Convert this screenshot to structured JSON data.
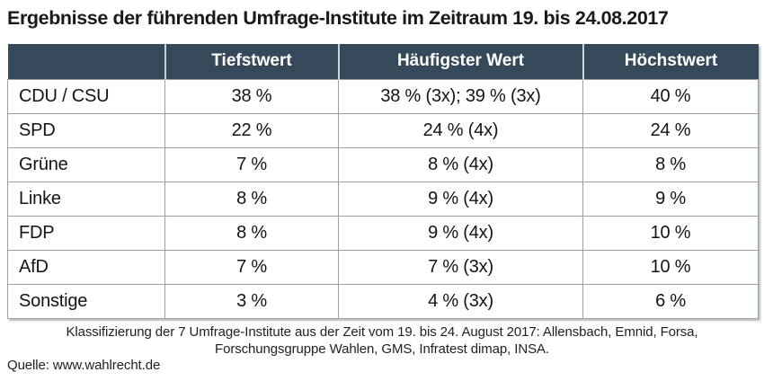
{
  "chart_data": {
    "type": "table",
    "title": "Ergebnisse der führenden Umfrage-Institute im Zeitraum 19. bis 24.08.2017",
    "columns": [
      "",
      "Tiefstwert",
      "Häufigster Wert",
      "Höchstwert"
    ],
    "rows": [
      [
        "CDU / CSU",
        "38 %",
        "38 % (3x); 39 % (3x)",
        "40 %"
      ],
      [
        "SPD",
        "22 %",
        "24 % (4x)",
        "24 %"
      ],
      [
        "Grüne",
        "7 %",
        "8 % (4x)",
        "8 %"
      ],
      [
        "Linke",
        "8 %",
        "9 % (4x)",
        "9 %"
      ],
      [
        "FDP",
        "8 %",
        "9 % (4x)",
        "10 %"
      ],
      [
        "AfD",
        "7 %",
        "7 % (3x)",
        "10 %"
      ],
      [
        "Sonstige",
        "3 %",
        "4 % (3x)",
        "6 %"
      ]
    ],
    "footnote_line1": "Klassifizierung der 7 Umfrage-Institute aus der Zeit vom 19. bis 24. August 2017: Allensbach, Emnid, Forsa,",
    "footnote_line2": "Forschungsgruppe Wahlen, GMS, Infratest dimap, INSA.",
    "source": "Quelle: www.wahlrecht.de",
    "colors": {
      "header_bg": "#36495a",
      "header_text": "#ffffff",
      "border": "#9aa2a7",
      "text": "#141414"
    }
  }
}
